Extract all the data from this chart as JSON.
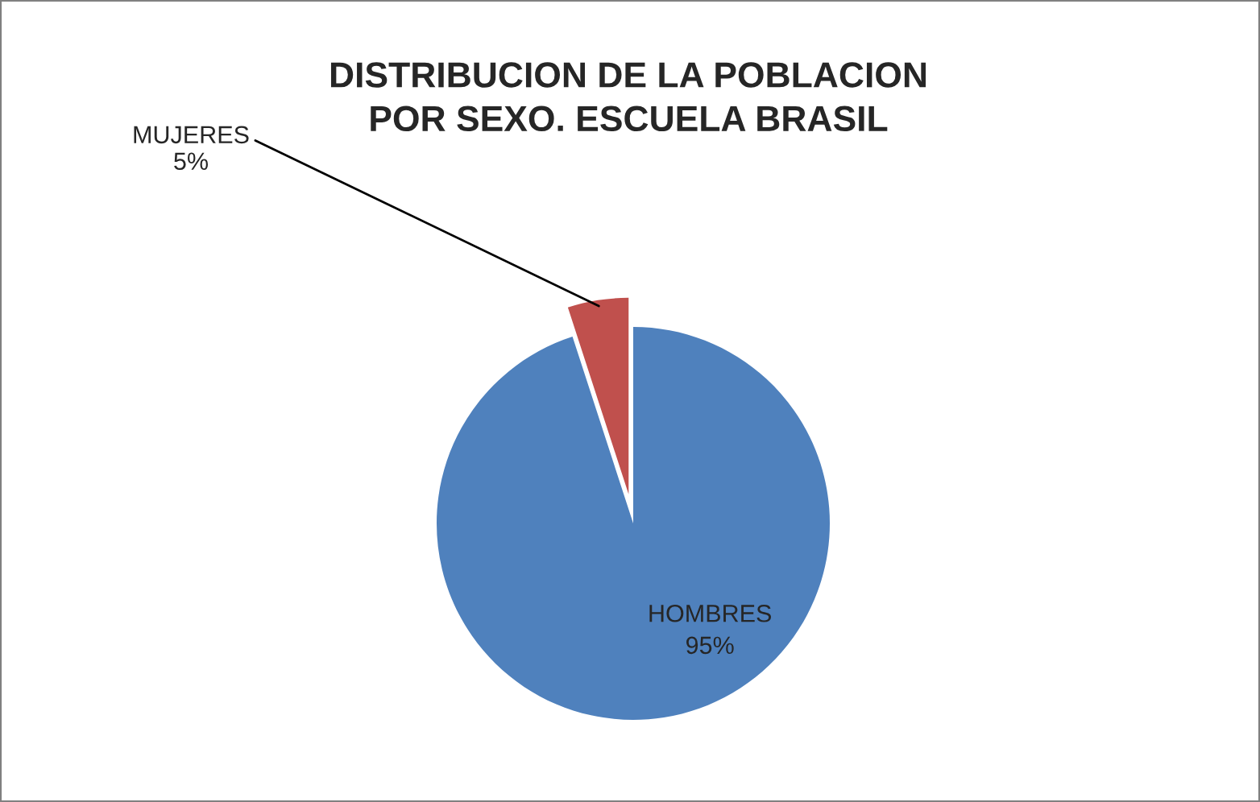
{
  "chart_data": {
    "type": "pie",
    "title": "DISTRIBUCION DE LA POBLACION\nPOR SEXO. ESCUELA BRASIL",
    "categories": [
      "HOMBRES",
      "MUJERES"
    ],
    "values": [
      95,
      5
    ],
    "value_labels": [
      "95%",
      "5%"
    ],
    "colors": [
      "#4f81bd",
      "#c0504d"
    ],
    "legend": false
  }
}
